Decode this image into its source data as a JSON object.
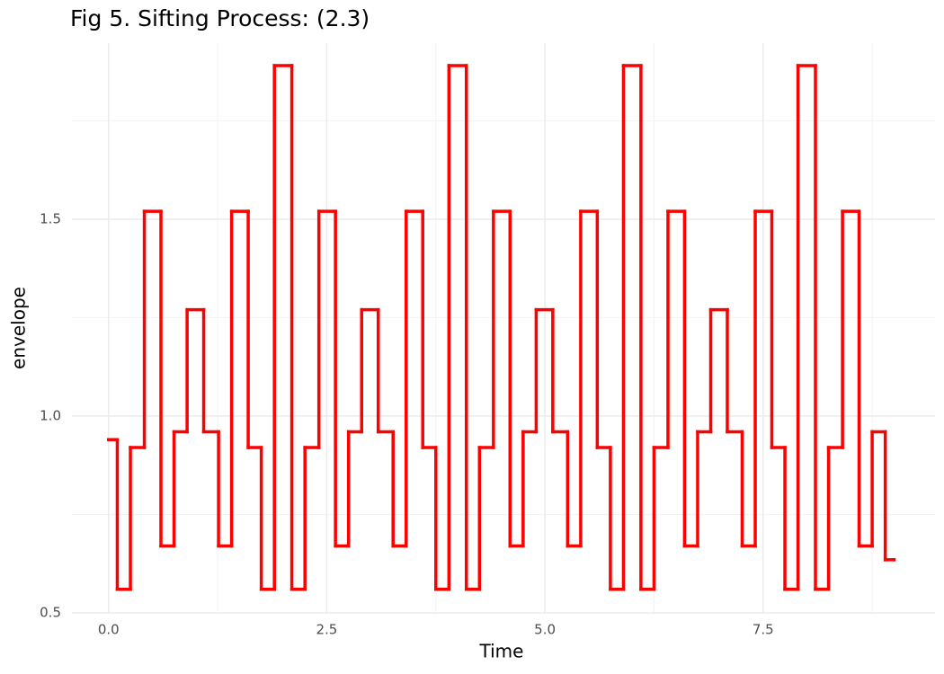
{
  "chart_data": {
    "type": "step",
    "title": "Fig 5. Sifting Process: (2.3)",
    "xlabel": "Time",
    "ylabel": "envelope",
    "color": "#ff0000",
    "grid": true,
    "xlim": [
      -0.42,
      9.47
    ],
    "ylim": [
      0.5,
      1.947
    ],
    "xticks": [
      {
        "value": 0,
        "label": "0.0"
      },
      2.5,
      {
        "value": 5,
        "label": "5.0"
      },
      7.5
    ],
    "yticks": [
      {
        "value": 0.5,
        "label": "0.5"
      },
      {
        "value": 1,
        "label": "1.0"
      },
      1.5
    ],
    "xminor": [
      1.25,
      3.75,
      6.25,
      8.75
    ],
    "yminor": [
      0.75,
      1.25,
      1.75
    ],
    "x": [
      0,
      0.1,
      0.25,
      0.41,
      0.6,
      0.75,
      0.9,
      1.09,
      1.26,
      1.41,
      1.6,
      1.75,
      1.9,
      2.1,
      2.25,
      2.41,
      2.6,
      2.75,
      2.9,
      3.09,
      3.26,
      3.41,
      3.6,
      3.75,
      3.9,
      4.1,
      4.25,
      4.41,
      4.6,
      4.75,
      4.9,
      5.09,
      5.26,
      5.41,
      5.6,
      5.75,
      5.9,
      6.1,
      6.25,
      6.41,
      6.6,
      6.75,
      6.9,
      7.09,
      7.26,
      7.41,
      7.6,
      7.75,
      7.9,
      8.1,
      8.25,
      8.41,
      8.6,
      8.75,
      8.9,
      9.0
    ],
    "values": [
      0.94,
      0.56,
      0.92,
      1.52,
      0.67,
      0.96,
      1.27,
      0.96,
      0.67,
      1.52,
      0.92,
      0.56,
      1.89,
      0.56,
      0.92,
      1.52,
      0.67,
      0.96,
      1.27,
      0.96,
      0.67,
      1.52,
      0.92,
      0.56,
      1.89,
      0.56,
      0.92,
      1.52,
      0.67,
      0.96,
      1.27,
      0.96,
      0.67,
      1.52,
      0.92,
      0.56,
      1.89,
      0.56,
      0.92,
      1.52,
      0.67,
      0.96,
      1.27,
      0.96,
      0.67,
      1.52,
      0.92,
      0.56,
      1.89,
      0.56,
      0.92,
      1.52,
      0.67,
      0.96,
      0.635,
      0.635
    ]
  }
}
